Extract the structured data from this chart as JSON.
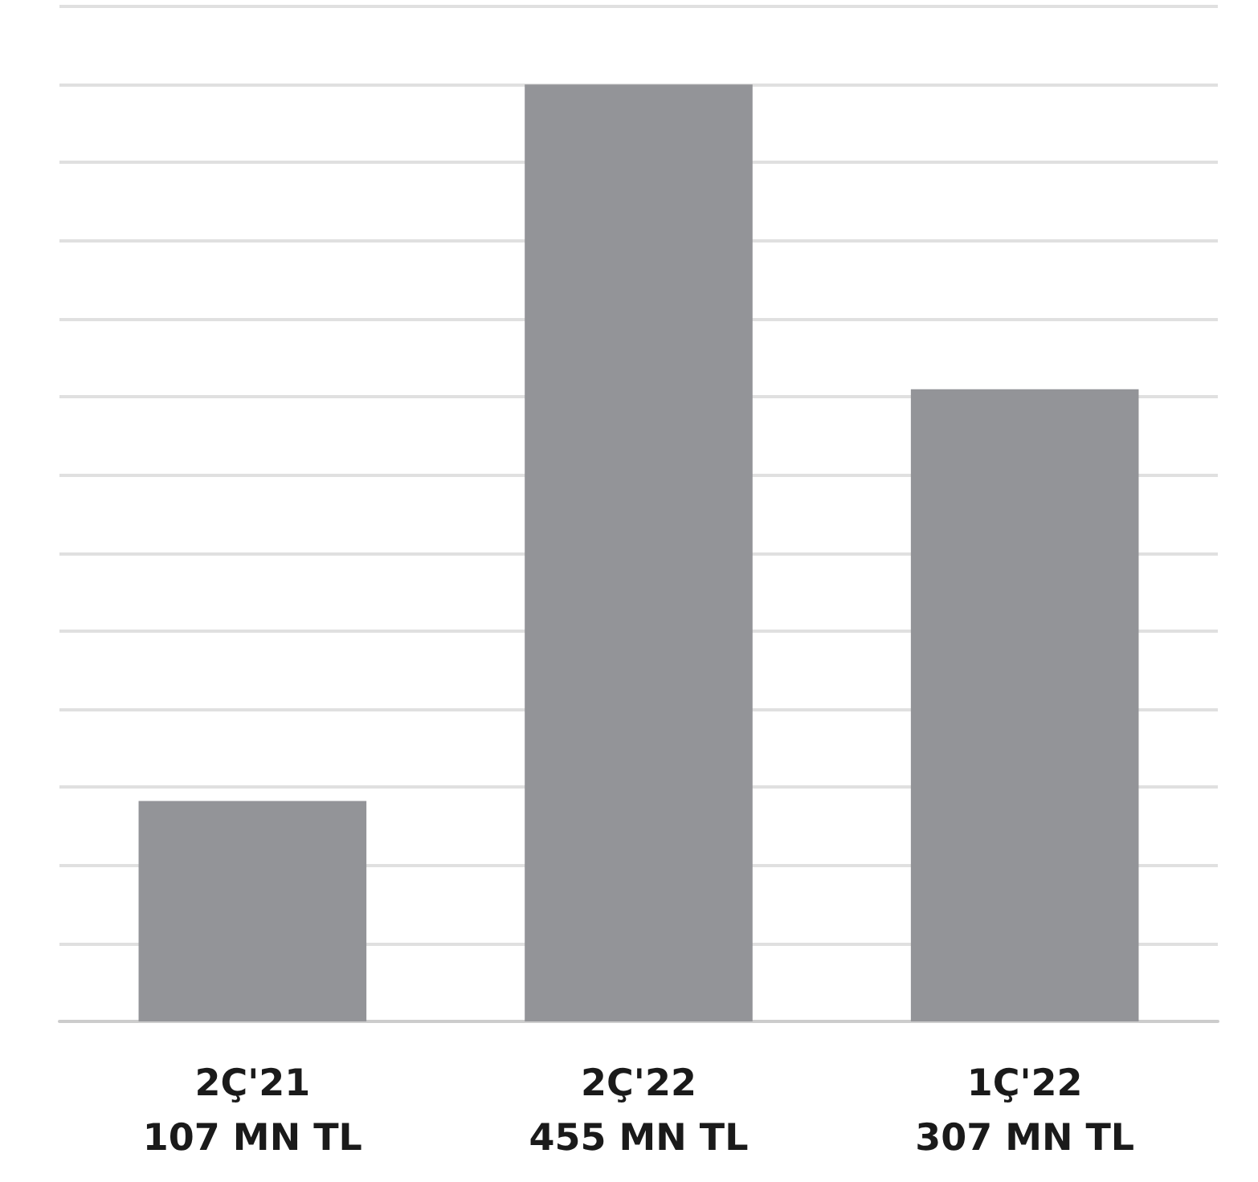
{
  "chart_data": {
    "type": "bar",
    "categories": [
      "2Ç'21",
      "2Ç'22",
      "1Ç'22"
    ],
    "values": [
      107,
      455,
      307
    ],
    "value_labels": [
      "107 MN TL",
      "455 MN TL",
      "307 MN TL"
    ],
    "color": "#939498",
    "grid": "y"
  }
}
